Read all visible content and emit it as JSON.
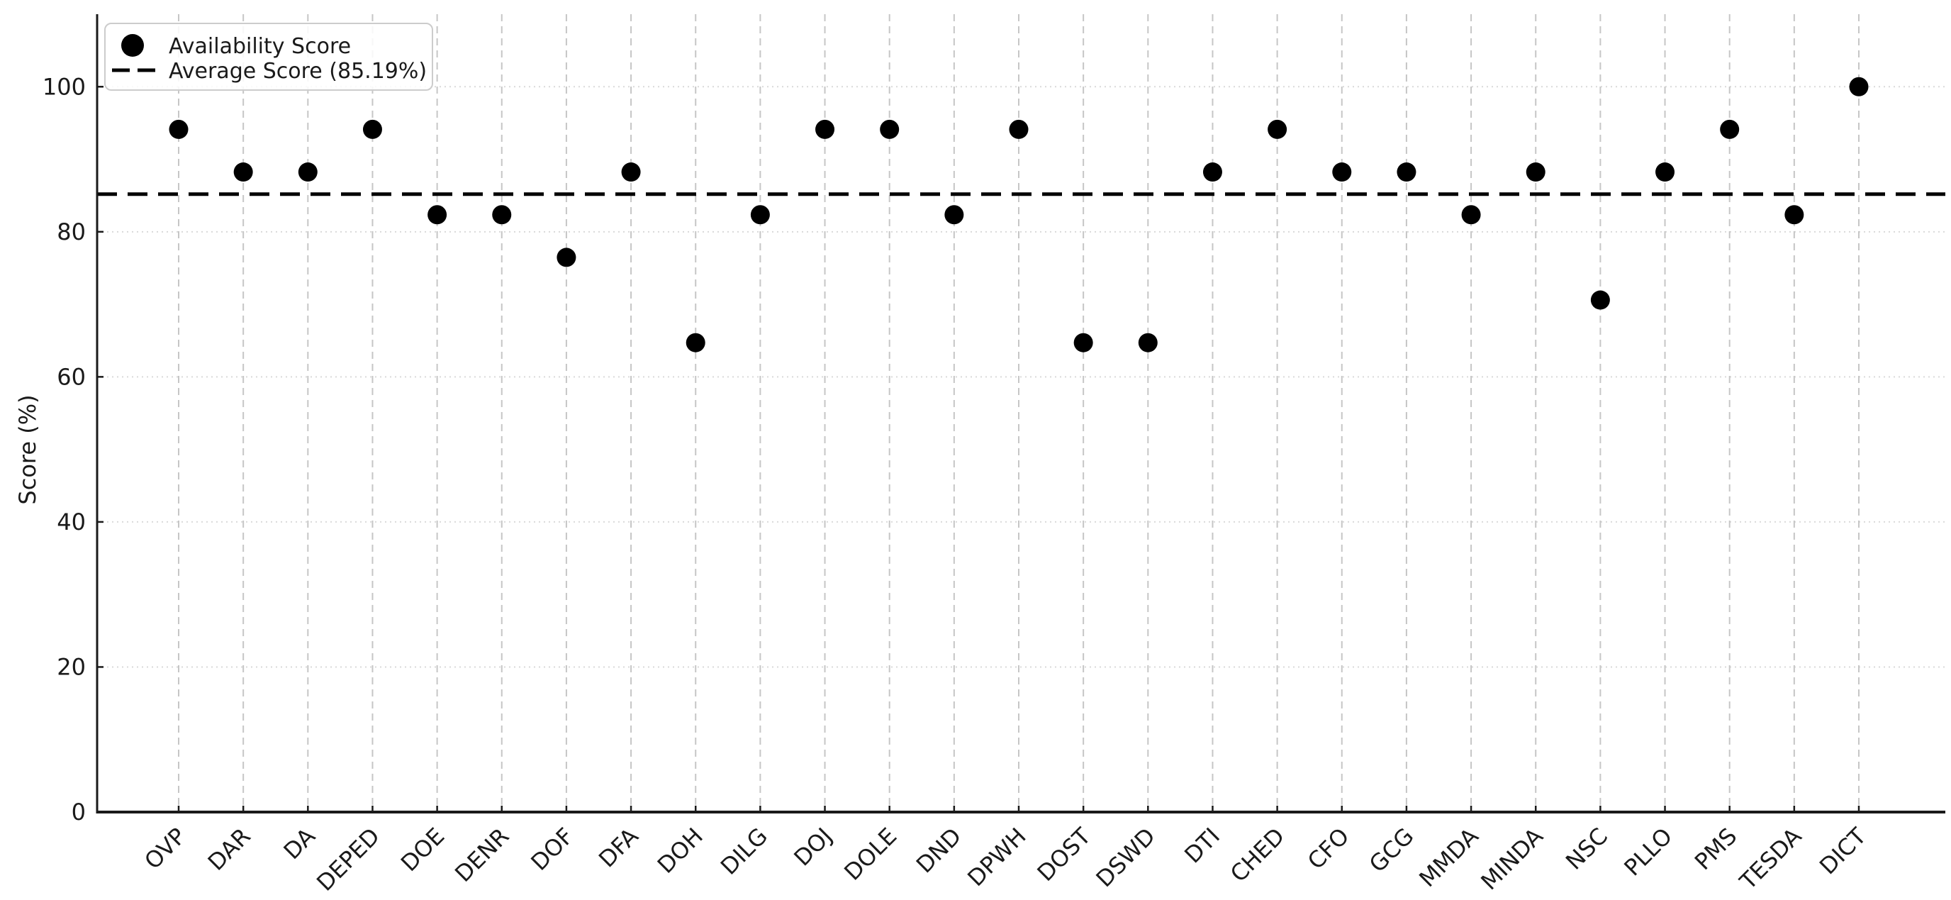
{
  "chart_data": {
    "type": "scatter",
    "title": "",
    "xlabel": "",
    "ylabel": "Score (%)",
    "categories": [
      "OVP",
      "DAR",
      "DA",
      "DEPED",
      "DOE",
      "DENR",
      "DOF",
      "DFA",
      "DOH",
      "DILG",
      "DOJ",
      "DOLE",
      "DND",
      "DPWH",
      "DOST",
      "DSWD",
      "DTI",
      "CHED",
      "CFO",
      "GCG",
      "MMDA",
      "MINDA",
      "NSC",
      "PLLO",
      "PMS",
      "TESDA",
      "DICT"
    ],
    "values": [
      94.12,
      88.24,
      88.24,
      94.12,
      82.35,
      82.35,
      76.47,
      88.24,
      64.71,
      82.35,
      94.12,
      94.12,
      82.35,
      94.12,
      64.71,
      64.71,
      88.24,
      94.12,
      88.24,
      88.24,
      82.35,
      88.24,
      70.59,
      88.24,
      94.12,
      82.35,
      100.0
    ],
    "average": 85.19,
    "average_label": "Average Score (85.19%)",
    "ylim": [
      0,
      110
    ],
    "yticks": [
      0,
      20,
      40,
      60,
      80,
      100
    ],
    "grid": {
      "vertical": "dashed",
      "horizontal": "dotted"
    },
    "legend": {
      "position": "upper-left",
      "items": [
        {
          "label": "Availability Score",
          "marker": "circle"
        },
        {
          "label": "Average Score (85.19%)",
          "marker": "dashed-line"
        }
      ]
    },
    "colors": {
      "point": "#000000",
      "average_line": "#000000",
      "grid_vertical": "#c6c6c6",
      "grid_horizontal": "#d9d9d9",
      "spine": "#1a1a1a",
      "text": "#1a1a1a",
      "legend_border": "#cccccc",
      "background": "#ffffff"
    }
  }
}
